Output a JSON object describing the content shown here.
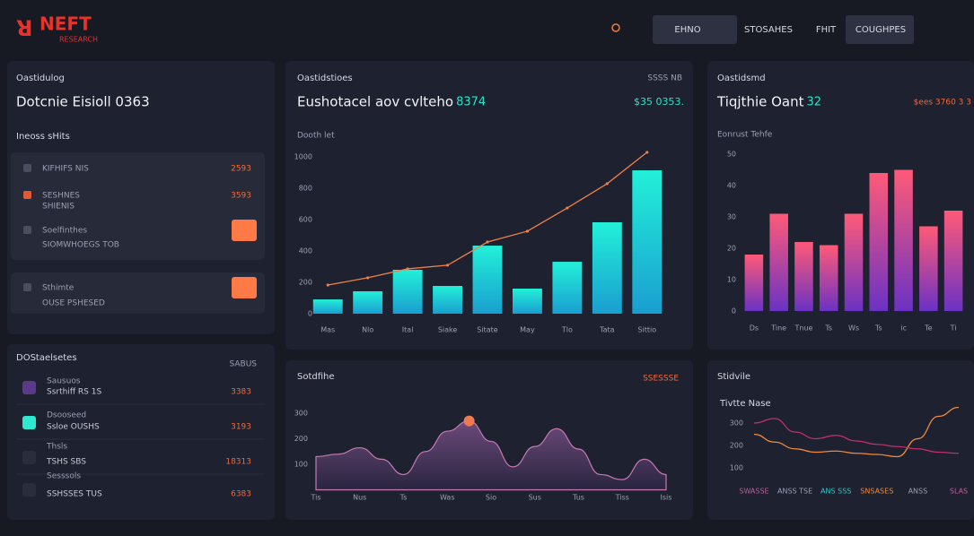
{
  "header": {
    "logo": "NEFT",
    "logo_sub": "RESEARCH",
    "nav": [
      "EHNO",
      "STOSAHES",
      "FHIT",
      "COUGHPES"
    ]
  },
  "sidebar": {
    "label": "Oastidulog",
    "title": "Dotcnie Eisioll 0363",
    "section": "Ineoss sHits",
    "items": [
      {
        "name": "KIFHIFS NIS",
        "value": "2593"
      },
      {
        "name": "SESHNES",
        "sub": "SHIENIS",
        "value": "3593"
      },
      {
        "name": "Soelfinthes",
        "sub": "SIOMWHOEGS TOB"
      },
      {
        "name": "Sthimte",
        "sub": "OUSE PSHESED"
      }
    ]
  },
  "list": {
    "title": "DOStaelsetes",
    "action": "SABUS",
    "items": [
      {
        "name": "Sausuos",
        "sub": "Ssrthiff RS 1S",
        "value": "3383"
      },
      {
        "name": "Dsooseed",
        "sub": "Ssloe OUSHS",
        "value": "3193"
      },
      {
        "name": "Thsls",
        "sub": "TSHS SBS",
        "value": "18313"
      },
      {
        "name": "Sesssols",
        "sub": "SSHSSES TUS",
        "value": "6383"
      }
    ]
  },
  "chart_data": [
    {
      "type": "bar",
      "label": "Oastidstioes",
      "title": "Eushotacel aov cvlteho",
      "title_accent": "8374",
      "corner": "SSSS NB",
      "value": "$35 0353.",
      "axis_label": "Dooth let",
      "categories": [
        "Mas",
        "Nlo",
        "Ital",
        "Siake",
        "Sitate",
        "May",
        "Tlo",
        "Tata",
        "Sittio"
      ],
      "series": [
        {
          "type": "bar",
          "color": "#1fd6d2",
          "values": [
            91,
            143,
            280,
            177,
            434,
            160,
            331,
            583,
            914
          ]
        },
        {
          "type": "line",
          "color": "#f0804a",
          "values": [
            183,
            229,
            286,
            309,
            457,
            526,
            674,
            829,
            1029
          ]
        }
      ],
      "ylim": [
        0,
        1100
      ],
      "yticks": [
        0,
        200,
        400,
        600,
        800,
        1000
      ]
    },
    {
      "type": "bar",
      "label": "Oastidsmd",
      "title": "Tiqjthie Oant",
      "title_accent": "32",
      "value": "$ees 3760 3 3",
      "axis_label": "Eonrust Tehfe",
      "categories": [
        "Ds",
        "Tine",
        "Tnue",
        "Ts",
        "Ws",
        "Ts",
        "ic",
        "Te",
        "Ti"
      ],
      "series": [
        {
          "type": "bar",
          "color": "#ff5a78",
          "color2": "#6a32c4",
          "values": [
            18,
            31,
            22,
            21,
            31,
            44,
            45,
            27,
            32
          ]
        }
      ],
      "ylim": [
        0,
        55
      ],
      "yticks": [
        0,
        10,
        20,
        30,
        40,
        50
      ]
    },
    {
      "type": "area",
      "title": "Sotdfihe",
      "corner": "SSESSSE",
      "categories": [
        "Tis",
        null,
        "Nus",
        null,
        "Ts",
        null,
        "Was",
        null,
        "Sio",
        null,
        "Sus",
        null,
        "Tus",
        null,
        "Tiss",
        null,
        "Isis"
      ],
      "series": [
        {
          "color": "#c77ab0",
          "values": [
            130,
            140,
            165,
            120,
            60,
            150,
            230,
            270,
            190,
            90,
            170,
            240,
            160,
            60,
            40,
            120,
            60
          ]
        }
      ],
      "ylim": [
        0,
        420
      ],
      "yticks": [
        100,
        200,
        300
      ]
    },
    {
      "type": "line",
      "title": "Stidvile",
      "subtitle": "Tivtte Nase",
      "categories": [
        "SWASSE",
        null,
        "ANSS TSE",
        null,
        "ANS SSS",
        null,
        "SNSASES",
        null,
        "ANSS",
        null,
        "SLAS"
      ],
      "series": [
        {
          "color": "#f08a3c",
          "values": [
            250,
            215,
            185,
            170,
            175,
            165,
            160,
            150,
            230,
            330,
            370
          ]
        },
        {
          "color": "#c0306e",
          "values": [
            300,
            320,
            260,
            230,
            245,
            220,
            205,
            195,
            185,
            170,
            165
          ]
        }
      ],
      "ylim": [
        0,
        400
      ],
      "yticks": [
        100,
        200,
        300
      ]
    }
  ]
}
